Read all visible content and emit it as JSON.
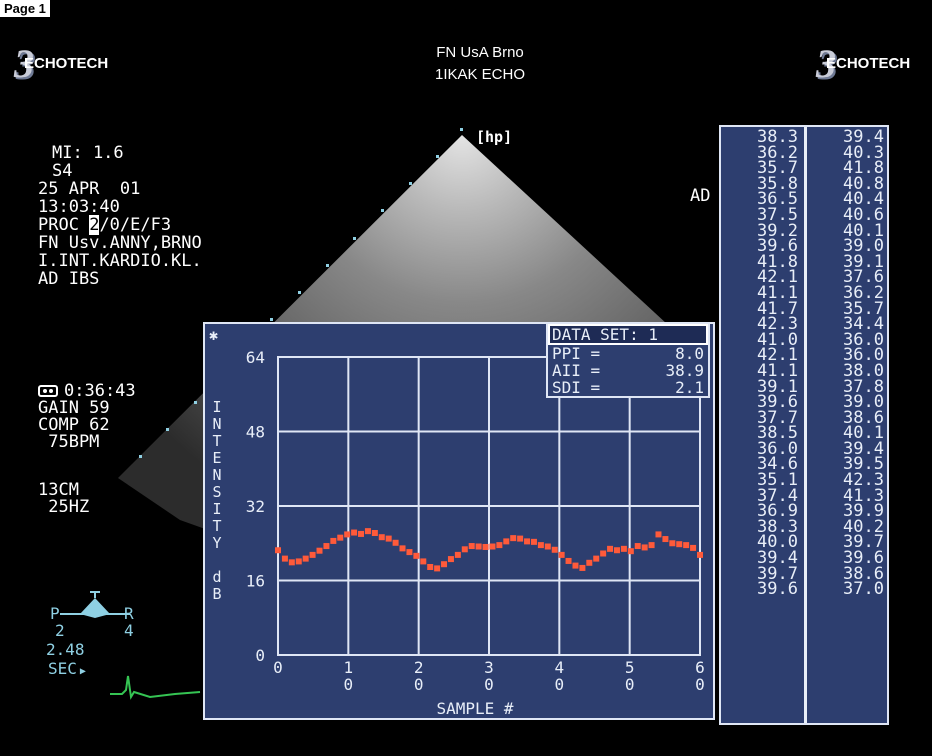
{
  "page_label": "Page 1",
  "logo_left": {
    "mark": "3",
    "text": "ECHOTECH"
  },
  "logo_right": {
    "mark": "3",
    "text": "ECHOTECH"
  },
  "header": {
    "line1": "FN UsA Brno",
    "line2": "1IKAK ECHO"
  },
  "probe_tag": "[hp]",
  "side_tag": "AD",
  "info": {
    "mi": "MI: 1.6",
    "preset": "S4",
    "date": "25 APR  01",
    "time": "13:03:40",
    "proc_prefix": "PROC ",
    "proc_highlight": "2",
    "proc_suffix": "/0/E/F3",
    "site1": "FN Usv.ANNY,BRNO",
    "site2": "I.INT.KARDIO.KL.",
    "patient": "AD IBS"
  },
  "acq": {
    "timer": "0:36:43",
    "gain": "GAIN 59",
    "comp": "COMP 62",
    "bpm": " 75BPM",
    "depth": "13CM",
    "freq": " 25HZ"
  },
  "orientation": {
    "left": "P",
    "right": "R",
    "num_left": "2",
    "num_right": "4",
    "secs": "2.48",
    "sec_label": "SEC"
  },
  "stats": {
    "title": "DATA SET:  1",
    "rows": [
      {
        "label": "PPI =",
        "value": "8.0"
      },
      {
        "label": "AII =",
        "value": "38.9"
      },
      {
        "label": "SDI =",
        "value": "2.1"
      }
    ]
  },
  "chart_data": {
    "type": "scatter",
    "title": "",
    "xlabel": "SAMPLE #",
    "ylabel": "INTENSITY dB",
    "corner_symbol": "✱",
    "xlim": [
      0,
      60
    ],
    "ylim": [
      0,
      64
    ],
    "x_ticks": [
      [
        "0",
        ""
      ],
      [
        "1",
        "0"
      ],
      [
        "2",
        "0"
      ],
      [
        "3",
        "0"
      ],
      [
        "4",
        "0"
      ],
      [
        "5",
        "0"
      ],
      [
        "6",
        "0"
      ]
    ],
    "y_ticks": [
      "64",
      "48",
      "32",
      "16",
      "0"
    ],
    "grid": true,
    "marker_color": "#ff5a3a",
    "y": [
      22.5,
      20.7,
      19.9,
      20.1,
      20.7,
      21.5,
      22.4,
      23.4,
      24.5,
      25.2,
      25.9,
      26.3,
      26.0,
      26.6,
      26.2,
      25.3,
      25.0,
      24.1,
      22.9,
      22.1,
      21.3,
      20.1,
      18.9,
      18.6,
      19.5,
      20.6,
      21.5,
      22.7,
      23.4,
      23.3,
      23.2,
      23.3,
      23.6,
      24.4,
      25.1,
      25.0,
      24.4,
      24.3,
      23.6,
      23.3,
      22.6,
      21.5,
      20.2,
      19.2,
      18.7,
      19.8,
      20.7,
      21.8,
      22.8,
      22.5,
      22.8,
      22.3,
      23.4,
      23.1,
      23.6,
      25.9,
      24.9,
      24.0,
      23.8,
      23.6,
      23.0,
      21.5
    ]
  },
  "table": {
    "col1": [
      "38.3",
      "36.2",
      "35.7",
      "35.8",
      "36.5",
      "37.5",
      "39.2",
      "39.6",
      "41.8",
      "42.1",
      "41.1",
      "41.7",
      "42.3",
      "41.0",
      "42.1",
      "41.1",
      "39.1",
      "39.6",
      "37.7",
      "38.5",
      "36.0",
      "34.6",
      "35.1",
      "37.4",
      "36.9",
      "38.3",
      "40.0",
      "39.4",
      "39.7",
      "39.6"
    ],
    "col2": [
      "39.4",
      "40.3",
      "41.8",
      "40.8",
      "40.4",
      "40.6",
      "40.1",
      "39.0",
      "39.1",
      "37.6",
      "36.2",
      "35.7",
      "34.4",
      "36.0",
      "36.0",
      "38.0",
      "37.8",
      "39.0",
      "38.6",
      "40.1",
      "39.4",
      "39.5",
      "42.3",
      "41.3",
      "39.9",
      "40.2",
      "39.7",
      "39.6",
      "38.6",
      "37.0"
    ]
  }
}
